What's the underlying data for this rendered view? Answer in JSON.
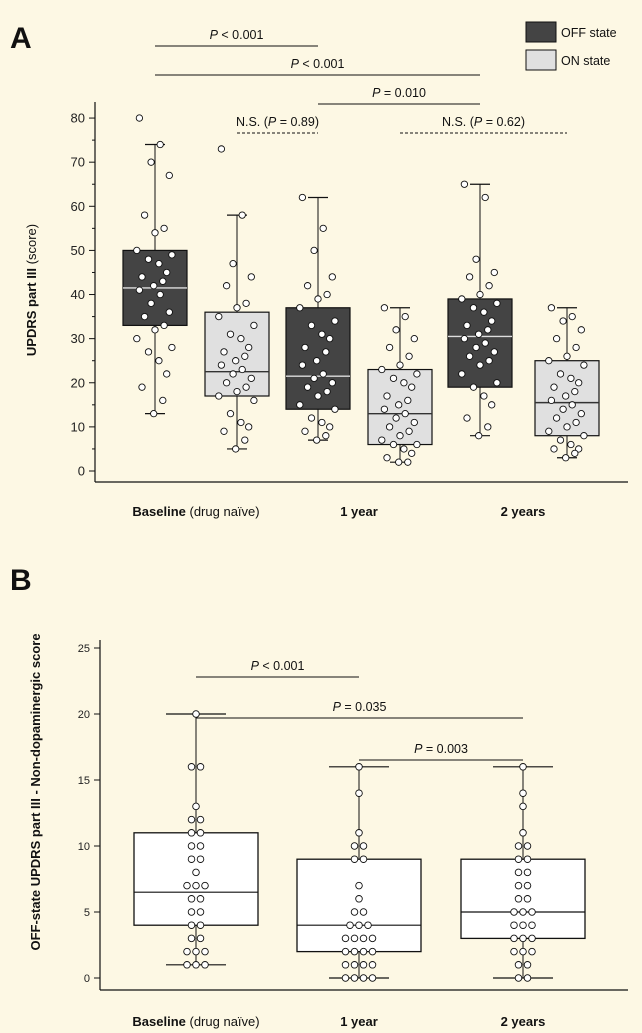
{
  "chart_data": [
    {
      "panel": "A",
      "type": "box",
      "ylabel_bold": "UPDRS part III",
      "ylabel_rest": " (score)",
      "ylim": [
        0,
        85
      ],
      "yticks": [
        0,
        10,
        20,
        30,
        40,
        50,
        60,
        70,
        80
      ],
      "categories": [
        {
          "bold": "Baseline",
          "rest": " (drug naïve)"
        },
        {
          "bold": "1 year",
          "rest": ""
        },
        {
          "bold": "2 years",
          "rest": ""
        }
      ],
      "legend": [
        {
          "name": "OFF state",
          "color": "#444444"
        },
        {
          "name": "ON state",
          "color": "#e0e0e0"
        }
      ],
      "boxes": [
        {
          "series": "OFF state",
          "category": 0,
          "min": 13,
          "q1": 33,
          "median": 41.5,
          "q3": 50,
          "max": 74,
          "points": [
            80,
            74,
            70,
            67,
            58,
            55,
            54,
            50,
            49,
            48,
            47,
            45,
            44,
            43,
            42,
            41,
            40,
            38,
            36,
            35,
            33,
            32,
            30,
            28,
            27,
            25,
            22,
            19,
            16,
            13
          ]
        },
        {
          "series": "ON state",
          "category": 0,
          "min": 5,
          "q1": 17,
          "median": 22.5,
          "q3": 36,
          "max": 58,
          "points": [
            73,
            58,
            47,
            44,
            42,
            38,
            37,
            35,
            33,
            31,
            30,
            28,
            27,
            26,
            25,
            24,
            23,
            22,
            21,
            20,
            19,
            18,
            17,
            16,
            13,
            11,
            10,
            9,
            7,
            5
          ]
        },
        {
          "series": "OFF state",
          "category": 1,
          "min": 7,
          "q1": 14,
          "median": 21.5,
          "q3": 37,
          "max": 62,
          "points": [
            62,
            55,
            50,
            44,
            42,
            40,
            39,
            37,
            34,
            33,
            31,
            30,
            28,
            27,
            25,
            24,
            22,
            21,
            20,
            19,
            18,
            17,
            15,
            14,
            12,
            11,
            10,
            9,
            8,
            7
          ]
        },
        {
          "series": "ON state",
          "category": 1,
          "min": 2,
          "q1": 6,
          "median": 13,
          "q3": 23,
          "max": 37,
          "points": [
            37,
            35,
            32,
            30,
            28,
            26,
            24,
            23,
            22,
            21,
            20,
            19,
            17,
            16,
            15,
            14,
            13,
            12,
            11,
            10,
            9,
            8,
            7,
            6,
            6,
            5,
            4,
            3,
            2,
            2
          ]
        },
        {
          "series": "OFF state",
          "category": 2,
          "min": 8,
          "q1": 19,
          "median": 30.5,
          "q3": 39,
          "max": 65,
          "points": [
            65,
            62,
            48,
            45,
            44,
            42,
            40,
            39,
            38,
            37,
            36,
            34,
            33,
            32,
            31,
            30,
            29,
            28,
            27,
            26,
            25,
            24,
            22,
            20,
            19,
            17,
            15,
            12,
            10,
            8
          ]
        },
        {
          "series": "ON state",
          "category": 2,
          "min": 3,
          "q1": 8,
          "median": 15.5,
          "q3": 25,
          "max": 37,
          "points": [
            37,
            35,
            34,
            32,
            30,
            28,
            26,
            25,
            24,
            22,
            21,
            20,
            19,
            18,
            17,
            16,
            15,
            14,
            13,
            12,
            11,
            10,
            9,
            8,
            7,
            6,
            5,
            5,
            4,
            3
          ]
        }
      ],
      "significance": [
        {
          "label": "P < 0.001",
          "from": "OFF state|0",
          "to": "OFF state|1",
          "style": "solid"
        },
        {
          "label": "P < 0.001",
          "from": "OFF state|0",
          "to": "OFF state|2",
          "style": "solid"
        },
        {
          "label": "P = 0.010",
          "from": "OFF state|1",
          "to": "OFF state|2",
          "style": "solid"
        },
        {
          "label": "N.S. (P = 0.89)",
          "from": "ON state|0",
          "to": "OFF state|1",
          "style": "dashed"
        },
        {
          "label": "N.S. (P = 0.62)",
          "from": "ON state|1",
          "to": "ON state|2",
          "style": "dashed"
        }
      ]
    },
    {
      "panel": "B",
      "type": "box",
      "ylabel": "OFF-state UPDRS part III - Non-dopaminergic score",
      "ylim": [
        0,
        25
      ],
      "yticks": [
        0,
        5,
        10,
        15,
        20,
        25
      ],
      "categories": [
        {
          "bold": "Baseline",
          "rest": " (drug naïve)"
        },
        {
          "bold": "1 year",
          "rest": ""
        },
        {
          "bold": "2 years",
          "rest": ""
        }
      ],
      "boxes": [
        {
          "category": 0,
          "min": 1,
          "q1": 4,
          "median": 6.5,
          "q3": 11,
          "max": 20,
          "points": [
            20,
            16,
            16,
            13,
            12,
            12,
            11,
            11,
            10,
            10,
            9,
            9,
            8,
            7,
            7,
            7,
            6,
            6,
            5,
            5,
            4,
            4,
            3,
            3,
            2,
            2,
            2,
            1,
            1,
            1
          ]
        },
        {
          "category": 1,
          "min": 0,
          "q1": 2,
          "median": 4,
          "q3": 9,
          "max": 16,
          "points": [
            16,
            14,
            11,
            10,
            10,
            9,
            9,
            7,
            6,
            5,
            5,
            4,
            4,
            4,
            3,
            3,
            3,
            3,
            2,
            2,
            2,
            2,
            1,
            1,
            1,
            1,
            0,
            0,
            0,
            0
          ]
        },
        {
          "category": 2,
          "min": 0,
          "q1": 3,
          "median": 5,
          "q3": 9,
          "max": 16,
          "points": [
            16,
            14,
            13,
            11,
            10,
            10,
            9,
            9,
            8,
            8,
            7,
            7,
            6,
            6,
            5,
            5,
            5,
            4,
            4,
            4,
            3,
            3,
            3,
            2,
            2,
            2,
            1,
            1,
            0,
            0
          ]
        }
      ],
      "significance": [
        {
          "label": "P < 0.001",
          "from": 0,
          "to": 1,
          "style": "solid"
        },
        {
          "label": "P = 0.035",
          "from": 0,
          "to": 2,
          "style": "solid"
        },
        {
          "label": "P = 0.003",
          "from": 1,
          "to": 2,
          "style": "solid"
        }
      ]
    }
  ]
}
